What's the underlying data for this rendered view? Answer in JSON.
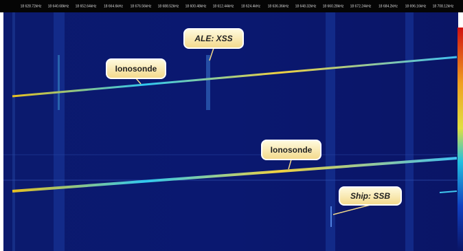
{
  "frequency_labels": [
    "18 628.72kHz",
    "18 640.68kHz",
    "18 652.64kHz",
    "18 664.6kHz",
    "18 676.56kHz",
    "18 688.52kHz",
    "18 600.48kHz",
    "18 612.44kHz",
    "18 624.4kHz",
    "18 636.36kHz",
    "18 648.32kHz",
    "18 660.28kHz",
    "18 672.24kHz",
    "18 684.2kHz",
    "18 696.16kHz",
    "18 708.12kHz"
  ],
  "annotations": [
    {
      "label": "ALE: XSS"
    },
    {
      "label": "Ionosonde"
    },
    {
      "label": "Ionosonde"
    },
    {
      "label": "Ship: SSB"
    }
  ]
}
